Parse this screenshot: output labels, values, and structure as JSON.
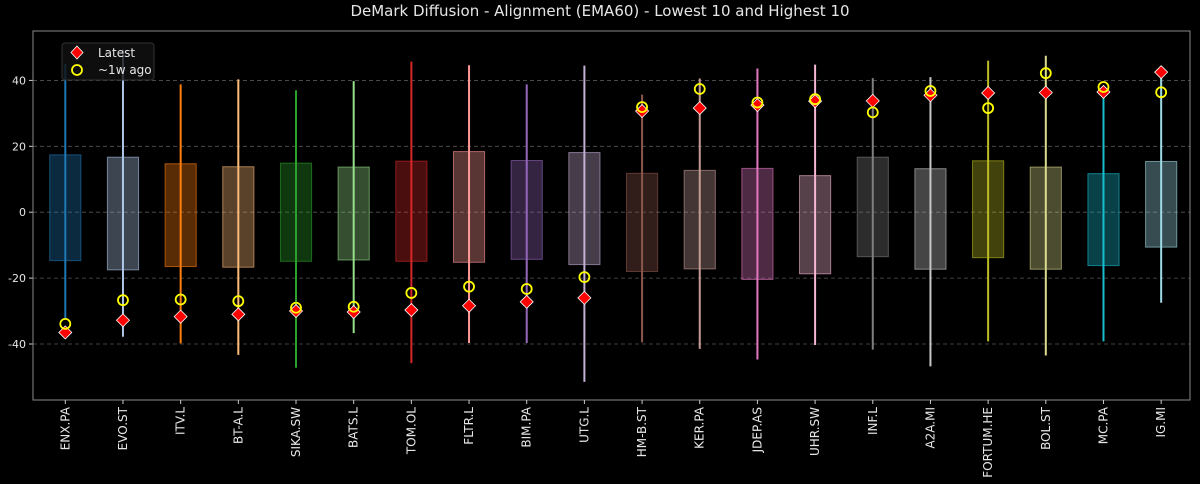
{
  "chart_data": {
    "type": "box",
    "title": "DeMark Diffusion - Alignment (EMA60) - Lowest 10 and Highest 10",
    "xlabel": "",
    "ylabel": "",
    "ylim": [
      -57,
      55
    ],
    "yticks": [
      -40,
      -20,
      0,
      20,
      40
    ],
    "grid": true,
    "legend_position": "top-left",
    "legend": [
      {
        "label": "Latest",
        "marker": "diamond",
        "color": "#ff0000"
      },
      {
        "label": "~1w ago",
        "marker": "circle",
        "color": "#ffff00"
      }
    ],
    "categories": [
      "ENX.PA",
      "EVO.ST",
      "ITV.L",
      "BT-A.L",
      "SIKA.SW",
      "BATS.L",
      "TOM.OL",
      "FLTR.L",
      "BIM.PA",
      "UTG.L",
      "HM-B.ST",
      "KER.PA",
      "JDEP.AS",
      "UHR.SW",
      "INF.L",
      "A2A.MI",
      "FORTUM.HE",
      "BOL.ST",
      "MC.PA",
      "IG.MI"
    ],
    "colors": [
      "#1f77b4",
      "#aec7e8",
      "#ff7f0e",
      "#ffbb78",
      "#2ca02c",
      "#98df8a",
      "#d62728",
      "#ff9896",
      "#9467bd",
      "#c5b0d5",
      "#8c564b",
      "#c49c94",
      "#e377c2",
      "#f7b6d2",
      "#7f7f7f",
      "#c7c7c7",
      "#bcbd22",
      "#dbdb8d",
      "#17becf",
      "#9edae5"
    ],
    "whisker_high": [
      45,
      49.4,
      38.8,
      40.3,
      37,
      39.8,
      45.7,
      44.6,
      38.8,
      44.5,
      35.7,
      40.6,
      43.6,
      44.8,
      40.7,
      41,
      46,
      47.5,
      37.5,
      42.5
    ],
    "whisker_low": [
      -32.5,
      -37.8,
      -39.8,
      -43.3,
      -47.2,
      -36.7,
      -45.8,
      -39.7,
      -39.7,
      -51.5,
      -39.5,
      -41.5,
      -44.7,
      -40.3,
      -41.7,
      -46.8,
      -39.2,
      -43.5,
      -39.2,
      -27.5
    ],
    "box_high": [
      17.4,
      16.7,
      14.7,
      13.8,
      14.9,
      13.7,
      15.5,
      18.4,
      15.7,
      18.1,
      11.8,
      12.7,
      13.3,
      11.1,
      16.7,
      13.2,
      15.6,
      13.7,
      11.7,
      15.4
    ],
    "box_low": [
      -14.7,
      -17.5,
      -16.5,
      -16.7,
      -14.9,
      -14.5,
      -14.9,
      -15.2,
      -14.3,
      -15.9,
      -18,
      -17.2,
      -20.4,
      -18.7,
      -13.5,
      -17.3,
      -13.8,
      -17.3,
      -16.2,
      -10.6
    ],
    "latest": [
      -36.5,
      -32.8,
      -31.7,
      -31,
      -30,
      -30.3,
      -29.7,
      -28.4,
      -27.2,
      -26,
      30.7,
      31.6,
      32.5,
      33.7,
      33.8,
      35.5,
      36.2,
      36.3,
      36.5,
      42.5
    ],
    "week_ago": [
      -33.9,
      -26.7,
      -26.5,
      -27,
      -29,
      -28.7,
      -24.5,
      -22.6,
      -23.3,
      -19.7,
      31.9,
      37.4,
      33.3,
      34.3,
      30.3,
      36.8,
      31.6,
      42.2,
      38,
      36.4
    ]
  }
}
